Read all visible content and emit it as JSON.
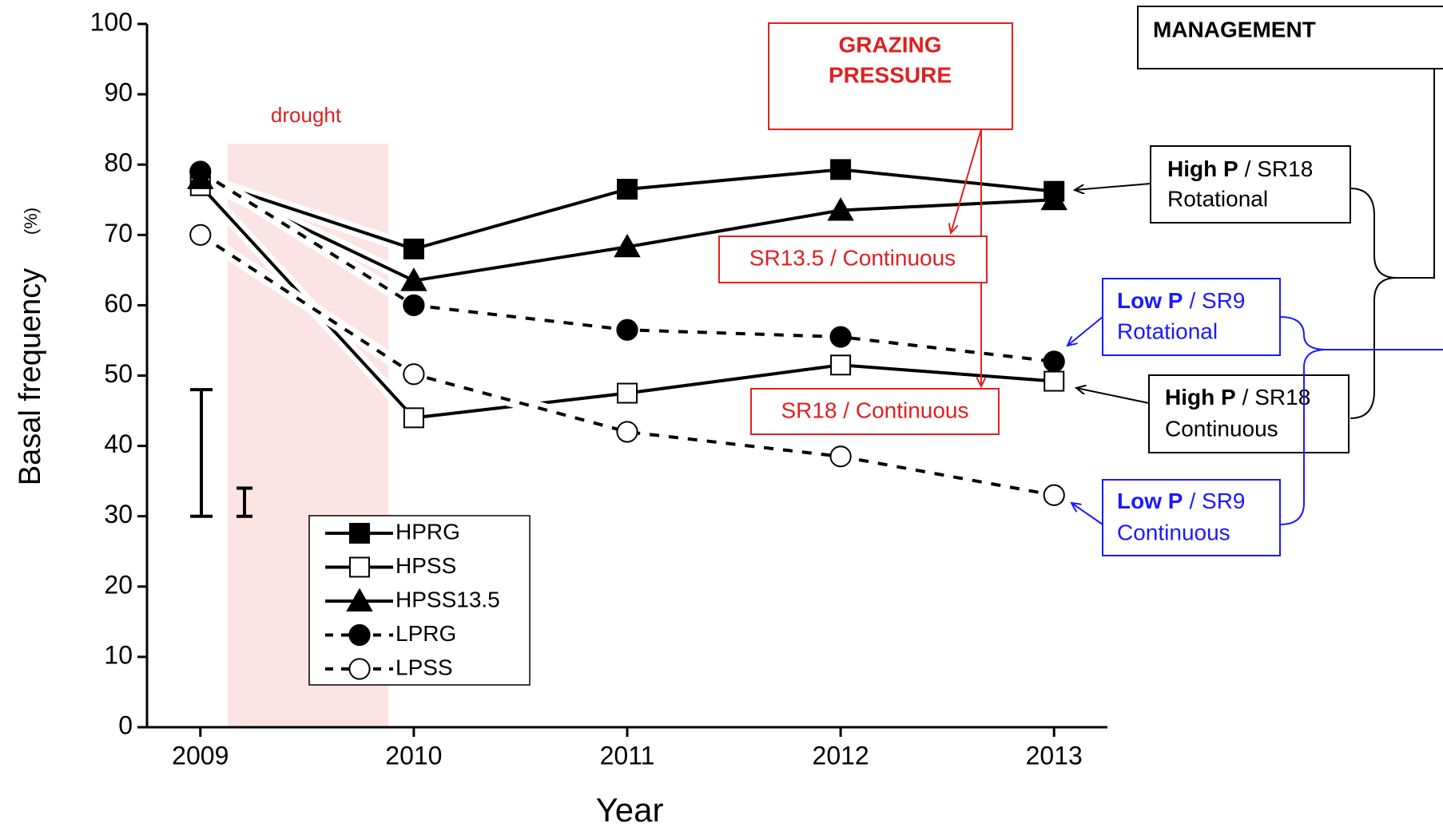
{
  "chart_data": {
    "type": "line",
    "x_label": "Year",
    "y_label": "Basal frequency",
    "y_unit": "(%)",
    "x": [
      2009,
      2010,
      2011,
      2012,
      2013
    ],
    "xlim": [
      2008.75,
      2013.25
    ],
    "xticks": [
      2009,
      2010,
      2011,
      2012,
      2013
    ],
    "ylim": [
      0,
      100
    ],
    "yticks": [
      0,
      10,
      20,
      30,
      40,
      50,
      60,
      70,
      80,
      90,
      100
    ],
    "series": [
      {
        "name": "HPRG",
        "color": "#000000",
        "marker": "square",
        "filled": true,
        "dashed": false,
        "values": [
          78,
          68,
          76.5,
          79.3,
          76.2
        ]
      },
      {
        "name": "HPSS",
        "color": "#000000",
        "marker": "square",
        "filled": false,
        "dashed": false,
        "values": [
          77,
          44,
          47.5,
          51.5,
          49.2
        ]
      },
      {
        "name": "HPSS13.5",
        "color": "#000000",
        "marker": "triangle",
        "filled": true,
        "dashed": false,
        "values": [
          78,
          63.5,
          68.3,
          73.5,
          75
        ]
      },
      {
        "name": "LPRG",
        "color": "#000000",
        "marker": "circle",
        "filled": true,
        "dashed": true,
        "values": [
          79,
          60,
          56.5,
          55.5,
          52
        ]
      },
      {
        "name": "LPSS",
        "color": "#000000",
        "marker": "circle",
        "filled": false,
        "dashed": true,
        "values": [
          70,
          50.2,
          42,
          38.5,
          33
        ]
      }
    ],
    "error_bars": [
      {
        "low": 30,
        "high": 48
      },
      {
        "low": 30,
        "high": 34
      }
    ],
    "annotations": {
      "drought": "drought",
      "grazing_pressure": [
        "GRAZING",
        "PRESSURE"
      ],
      "management": "MANAGEMENT",
      "sr135_continuous": "SR13.5 / Continuous",
      "sr18_continuous": "SR18 / Continuous",
      "high_p_rotational": [
        "High P",
        "/ SR18",
        "Rotational"
      ],
      "low_p_rotational": [
        "Low P",
        "/ SR9",
        "Rotational"
      ],
      "high_p_continuous": [
        "High P",
        "/ SR18",
        "Continuous"
      ],
      "low_p_continuous": [
        "Low P",
        "/ SR9",
        "Continuous"
      ]
    }
  }
}
